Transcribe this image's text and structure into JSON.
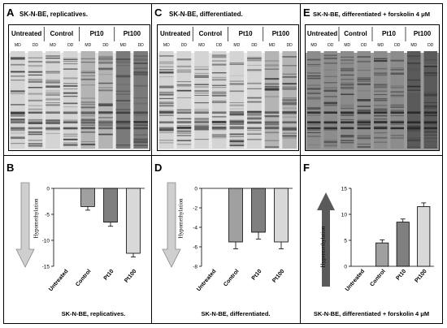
{
  "panels": {
    "A": {
      "label": "A",
      "title": "SK-N-BE, replicatives."
    },
    "C": {
      "label": "C",
      "title": "SK-N-BE, differentiated."
    },
    "E": {
      "label": "E",
      "title": "SK-N-BE, differentiated + forskolin 4 μM"
    },
    "B": {
      "label": "B",
      "caption": "SK-N-BE, replicatives."
    },
    "D": {
      "label": "D",
      "caption": "SK-N-BE, differentiated."
    },
    "F": {
      "label": "F",
      "caption": "SK-N-BE, differentiated + forskolin 4 μM"
    }
  },
  "gel_groups": [
    "Untreated",
    "Control",
    "Pt10",
    "Pt100"
  ],
  "gel_lanes": [
    "MD",
    "DD",
    "MD",
    "DD",
    "MD",
    "DD",
    "MD",
    "DD"
  ],
  "arrows": {
    "left_label": "Hypomethylation",
    "right_label": "Hypermethylation",
    "right_color": "#555555",
    "left_color": "#c8c8c8"
  },
  "chart_data": [
    {
      "type": "bar",
      "panel": "B",
      "categories": [
        "Untreated",
        "Control",
        "Pt10",
        "Pt100"
      ],
      "values": [
        0,
        -3.5,
        -6.5,
        -12.5
      ],
      "errors": [
        0,
        0.7,
        0.8,
        0.7
      ],
      "colors": [
        "#cccccc",
        "#a0a0a0",
        "#7f7f7f",
        "#d8d8d8"
      ],
      "ylim": [
        -15,
        0
      ],
      "yticks": [
        0,
        -5,
        -10,
        -15
      ],
      "title": "",
      "xlabel": "",
      "ylabel": ""
    },
    {
      "type": "bar",
      "panel": "D",
      "categories": [
        "Untreated",
        "Control",
        "Pt10",
        "Pt100"
      ],
      "values": [
        0,
        -5.5,
        -4.5,
        -5.5
      ],
      "errors": [
        0,
        0.7,
        0.7,
        0.7
      ],
      "colors": [
        "#cccccc",
        "#a0a0a0",
        "#7f7f7f",
        "#d8d8d8"
      ],
      "ylim": [
        -8,
        0
      ],
      "yticks": [
        0,
        -2,
        -4,
        -6,
        -8
      ],
      "title": "",
      "xlabel": "",
      "ylabel": ""
    },
    {
      "type": "bar",
      "panel": "F",
      "categories": [
        "Untreated",
        "Control",
        "Pt10",
        "Pt100"
      ],
      "values": [
        0,
        4.5,
        8.5,
        11.5
      ],
      "errors": [
        0,
        0.6,
        0.6,
        0.7
      ],
      "colors": [
        "#cccccc",
        "#a0a0a0",
        "#7f7f7f",
        "#d8d8d8"
      ],
      "ylim": [
        0,
        15
      ],
      "yticks": [
        0,
        5,
        10,
        15
      ],
      "title": "",
      "xlabel": "",
      "ylabel": ""
    }
  ]
}
